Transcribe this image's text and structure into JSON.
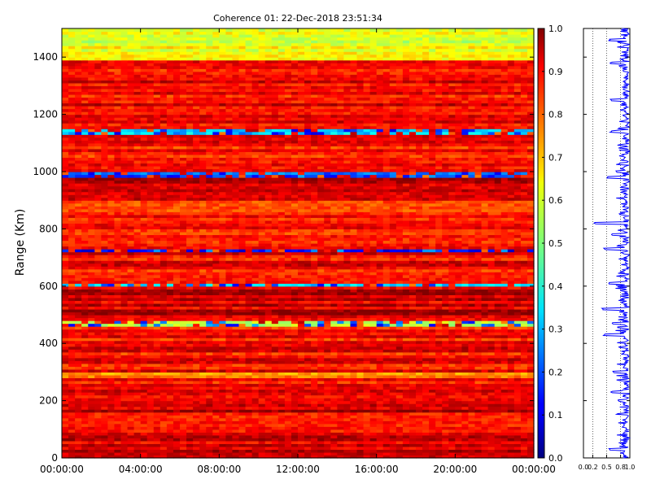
{
  "chart_data": [
    {
      "type": "heatmap",
      "title": "Coherence 01: 22-Dec-2018 23:51:34",
      "xlabel": "",
      "ylabel": "Range (Km)",
      "x_tick_labels": [
        "00:00:00",
        "04:00:00",
        "08:00:00",
        "12:00:00",
        "16:00:00",
        "20:00:00",
        "00:00:00"
      ],
      "y_ticks": [
        0,
        200,
        400,
        600,
        800,
        1000,
        1200,
        1400
      ],
      "ylim": [
        0,
        1500
      ],
      "colorbar": {
        "colormap": "jet",
        "range": [
          0.0,
          1.0
        ],
        "tick_labels": [
          "0.0",
          "0.1",
          "0.2",
          "0.3",
          "0.4",
          "0.5",
          "0.6",
          "0.7",
          "0.8",
          "0.9",
          "1.0"
        ]
      },
      "range_bands_km": [
        {
          "range": [
            0,
            160
          ],
          "coherence": 0.9
        },
        {
          "range": [
            160,
            200
          ],
          "coherence": 0.95
        },
        {
          "range": [
            200,
            280
          ],
          "coherence": 0.88
        },
        {
          "range": [
            280,
            300
          ],
          "coherence": 0.7
        },
        {
          "range": [
            300,
            460
          ],
          "coherence": 0.87
        },
        {
          "range": [
            460,
            480
          ],
          "coherence": 0.5
        },
        {
          "range": [
            480,
            600
          ],
          "coherence": 0.93
        },
        {
          "range": [
            600,
            610
          ],
          "coherence": 0.3
        },
        {
          "range": [
            610,
            720
          ],
          "coherence": 0.87
        },
        {
          "range": [
            720,
            735
          ],
          "coherence": 0.15
        },
        {
          "range": [
            735,
            900
          ],
          "coherence": 0.85
        },
        {
          "range": [
            900,
            980
          ],
          "coherence": 0.92
        },
        {
          "range": [
            980,
            1000
          ],
          "coherence": 0.2
        },
        {
          "range": [
            1000,
            1130
          ],
          "coherence": 0.87
        },
        {
          "range": [
            1130,
            1150
          ],
          "coherence": 0.3
        },
        {
          "range": [
            1150,
            1390
          ],
          "coherence": 0.88
        },
        {
          "range": [
            1390,
            1500
          ],
          "coherence": 0.6
        }
      ]
    },
    {
      "type": "line",
      "xlabel": "",
      "ylabel": "",
      "x_tick_labels": [
        "0.0",
        "0.2",
        "0.5",
        "0.8",
        "1.0"
      ],
      "xlim": [
        0,
        1
      ],
      "ylim": [
        0,
        1500
      ],
      "profile": [
        {
          "range_km": 30,
          "coherence": 0.55
        },
        {
          "range_km": 200,
          "coherence": 0.75
        },
        {
          "range_km": 230,
          "coherence": 0.6
        },
        {
          "range_km": 300,
          "coherence": 0.65
        },
        {
          "range_km": 430,
          "coherence": 0.45
        },
        {
          "range_km": 470,
          "coherence": 0.62
        },
        {
          "range_km": 520,
          "coherence": 0.4
        },
        {
          "range_km": 610,
          "coherence": 0.55
        },
        {
          "range_km": 730,
          "coherence": 0.45
        },
        {
          "range_km": 780,
          "coherence": 0.6
        },
        {
          "range_km": 820,
          "coherence": 0.25
        },
        {
          "range_km": 980,
          "coherence": 0.5
        },
        {
          "range_km": 1000,
          "coherence": 0.7
        },
        {
          "range_km": 1140,
          "coherence": 0.6
        },
        {
          "range_km": 1250,
          "coherence": 0.6
        },
        {
          "range_km": 1380,
          "coherence": 0.6
        },
        {
          "range_km": 1460,
          "coherence": 0.55
        }
      ]
    }
  ]
}
